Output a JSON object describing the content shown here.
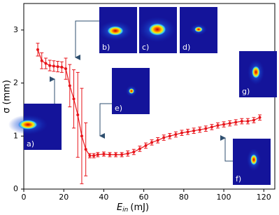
{
  "chart_data": {
    "type": "line",
    "color": "#e8141a",
    "x": [
      7,
      9,
      11,
      13,
      15,
      17,
      19,
      21,
      23,
      25,
      27,
      29,
      31,
      33,
      35,
      37,
      40,
      43,
      46,
      49,
      52,
      55,
      58,
      61,
      64,
      67,
      70,
      73,
      76,
      79,
      82,
      85,
      88,
      91,
      94,
      97,
      100,
      103,
      106,
      109,
      112,
      115,
      118
    ],
    "series": [
      {
        "color": "#e8141a",
        "values": [
          2.63,
          2.42,
          2.37,
          2.33,
          2.32,
          2.31,
          2.3,
          2.27,
          1.95,
          1.7,
          1.4,
          1.0,
          0.75,
          0.63,
          0.63,
          0.65,
          0.66,
          0.65,
          0.65,
          0.65,
          0.67,
          0.7,
          0.76,
          0.82,
          0.88,
          0.92,
          0.97,
          1.0,
          1.03,
          1.06,
          1.08,
          1.1,
          1.12,
          1.14,
          1.17,
          1.2,
          1.22,
          1.24,
          1.26,
          1.28,
          1.28,
          1.3,
          1.35
        ],
        "errors": [
          0.12,
          0.15,
          0.1,
          0.1,
          0.1,
          0.1,
          0.1,
          0.2,
          0.4,
          0.55,
          0.8,
          0.9,
          0.5,
          0.04,
          0.04,
          0.04,
          0.04,
          0.04,
          0.04,
          0.04,
          0.05,
          0.05,
          0.05,
          0.05,
          0.05,
          0.05,
          0.05,
          0.05,
          0.05,
          0.05,
          0.05,
          0.05,
          0.05,
          0.05,
          0.05,
          0.05,
          0.05,
          0.05,
          0.05,
          0.05,
          0.05,
          0.05,
          0.05
        ]
      }
    ],
    "xlim": [
      0,
      125.5
    ],
    "ylim": [
      0,
      3.5
    ],
    "xticks": [
      0,
      20,
      40,
      60,
      80,
      100,
      120
    ],
    "yticks": [
      0,
      1,
      2,
      3
    ],
    "x_label": {
      "symbol": "E",
      "subscript": "in",
      "unit": "(mJ)"
    },
    "y_label": "σ (mm)",
    "annotations": [
      "a)",
      "b)",
      "c)",
      "d)",
      "e)",
      "f)",
      "g)"
    ]
  }
}
